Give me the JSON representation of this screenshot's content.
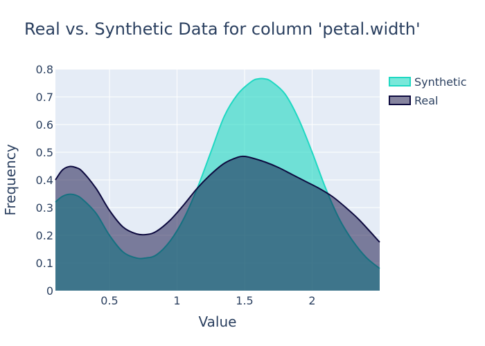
{
  "chart_data": {
    "type": "area",
    "title": "Real vs. Synthetic Data for column 'petal.width'",
    "xlabel": "Value",
    "ylabel": "Frequency",
    "xlim": [
      0.1,
      2.5
    ],
    "ylim": [
      0,
      0.8
    ],
    "xticks": [
      {
        "value": 0.5,
        "label": "0.5"
      },
      {
        "value": 1,
        "label": "1"
      },
      {
        "value": 1.5,
        "label": "1.5"
      },
      {
        "value": 2,
        "label": "2"
      }
    ],
    "yticks": [
      {
        "value": 0,
        "label": "0"
      },
      {
        "value": 0.1,
        "label": "0.1"
      },
      {
        "value": 0.2,
        "label": "0.2"
      },
      {
        "value": 0.3,
        "label": "0.3"
      },
      {
        "value": 0.4,
        "label": "0.4"
      },
      {
        "value": 0.5,
        "label": "0.5"
      },
      {
        "value": 0.6,
        "label": "0.6"
      },
      {
        "value": 0.7,
        "label": "0.7"
      },
      {
        "value": 0.8,
        "label": "0.8"
      }
    ],
    "grid": true,
    "legend_position": "top-right",
    "series": [
      {
        "name": "Synthetic",
        "color": "#1fd8c2",
        "x": [
          0.1,
          0.15,
          0.2,
          0.25,
          0.3,
          0.4,
          0.5,
          0.6,
          0.7,
          0.77,
          0.85,
          0.95,
          1.05,
          1.15,
          1.25,
          1.35,
          1.45,
          1.55,
          1.6,
          1.65,
          1.7,
          1.8,
          1.9,
          2.0,
          2.1,
          2.2,
          2.3,
          2.4,
          2.5
        ],
        "values": [
          0.32,
          0.34,
          0.348,
          0.345,
          0.33,
          0.28,
          0.2,
          0.14,
          0.118,
          0.118,
          0.13,
          0.18,
          0.26,
          0.37,
          0.5,
          0.63,
          0.71,
          0.755,
          0.765,
          0.765,
          0.755,
          0.71,
          0.62,
          0.5,
          0.37,
          0.26,
          0.18,
          0.12,
          0.08
        ]
      },
      {
        "name": "Real",
        "color": "#0d0a3f",
        "x": [
          0.1,
          0.15,
          0.2,
          0.25,
          0.3,
          0.4,
          0.5,
          0.6,
          0.7,
          0.78,
          0.85,
          0.95,
          1.05,
          1.15,
          1.25,
          1.35,
          1.45,
          1.5,
          1.55,
          1.65,
          1.75,
          1.85,
          1.95,
          2.05,
          2.15,
          2.25,
          2.35,
          2.5
        ],
        "values": [
          0.4,
          0.435,
          0.448,
          0.445,
          0.43,
          0.37,
          0.29,
          0.23,
          0.205,
          0.203,
          0.215,
          0.255,
          0.31,
          0.37,
          0.42,
          0.46,
          0.482,
          0.485,
          0.48,
          0.465,
          0.445,
          0.42,
          0.395,
          0.37,
          0.34,
          0.3,
          0.255,
          0.175
        ]
      }
    ]
  },
  "colors": {
    "plot_bg": "#e5ecf6",
    "text": "#2a3f5f"
  }
}
